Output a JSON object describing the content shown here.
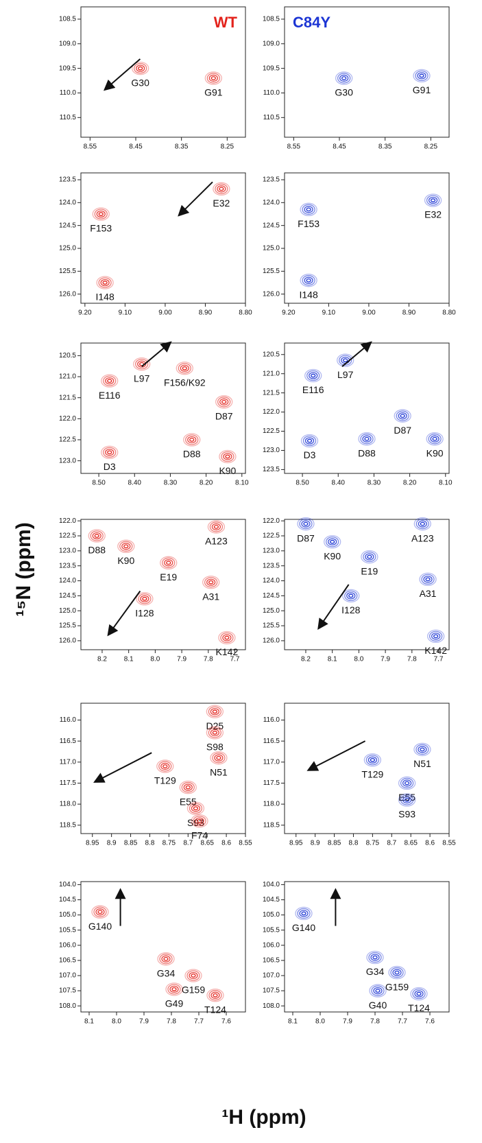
{
  "axis_labels": {
    "x": "¹H (ppm)",
    "y": "¹⁵N (ppm)"
  },
  "chart_data": [
    {
      "type": "scatter",
      "title": "WT",
      "color": "#e3231c",
      "xlim": [
        8.57,
        8.21
      ],
      "ylim": [
        110.9,
        108.25
      ],
      "xticks": [
        8.55,
        8.45,
        8.35,
        8.25
      ],
      "yticks": [
        108.5,
        {
          "value": 109,
          "label": "109.0"
        },
        109.5,
        {
          "value": 110,
          "label": "110.0"
        },
        110.5
      ],
      "x": [
        8.44,
        8.28
      ],
      "values": [
        109.5,
        109.7
      ],
      "labels": [
        "G30",
        "G91"
      ]
    },
    {
      "type": "scatter",
      "title": "C84Y",
      "color": "#1c35d4",
      "xlim": [
        8.57,
        8.21
      ],
      "ylim": [
        110.9,
        108.25
      ],
      "xticks": [
        8.55,
        8.45,
        8.35,
        8.25
      ],
      "yticks": [
        108.5,
        {
          "value": 109,
          "label": "109.0"
        },
        109.5,
        {
          "value": 110,
          "label": "110.0"
        },
        110.5
      ],
      "x": [
        8.44,
        8.27
      ],
      "values": [
        109.7,
        109.65
      ],
      "labels": [
        "G30",
        "G91"
      ]
    },
    {
      "type": "scatter",
      "color": "#e3231c",
      "xlim": [
        9.21,
        8.8
      ],
      "ylim": [
        126.2,
        123.35
      ],
      "xticks": [
        {
          "value": 9.2,
          "label": "9.20"
        },
        {
          "value": 9.1,
          "label": "9.10"
        },
        {
          "value": 9,
          "label": "9.00"
        },
        {
          "value": 8.9,
          "label": "8.90"
        },
        {
          "value": 8.8,
          "label": "8.80"
        }
      ],
      "yticks": [
        123.5,
        {
          "value": 124,
          "label": "124.0"
        },
        124.5,
        {
          "value": 125,
          "label": "125.0"
        },
        125.5,
        {
          "value": 126,
          "label": "126.0"
        }
      ],
      "x": [
        9.16,
        9.15,
        8.86
      ],
      "values": [
        124.25,
        125.75,
        123.7
      ],
      "labels": [
        "F153",
        "I148",
        "E32"
      ]
    },
    {
      "type": "scatter",
      "color": "#1c35d4",
      "xlim": [
        9.21,
        8.8
      ],
      "ylim": [
        126.2,
        123.35
      ],
      "xticks": [
        {
          "value": 9.2,
          "label": "9.20"
        },
        {
          "value": 9.1,
          "label": "9.10"
        },
        {
          "value": 9,
          "label": "9.00"
        },
        {
          "value": 8.9,
          "label": "8.90"
        },
        {
          "value": 8.8,
          "label": "8.80"
        }
      ],
      "yticks": [
        123.5,
        {
          "value": 124,
          "label": "124.0"
        },
        124.5,
        {
          "value": 125,
          "label": "125.0"
        },
        125.5,
        {
          "value": 126,
          "label": "126.0"
        }
      ],
      "x": [
        9.15,
        9.15,
        8.84
      ],
      "values": [
        124.15,
        125.7,
        123.95
      ],
      "labels": [
        "F153",
        "I148",
        "E32"
      ]
    },
    {
      "type": "scatter",
      "color": "#e3231c",
      "xlim": [
        8.55,
        8.09
      ],
      "ylim": [
        123.3,
        120.2
      ],
      "xticks": [
        {
          "value": 8.5,
          "label": "8.50"
        },
        {
          "value": 8.4,
          "label": "8.40"
        },
        {
          "value": 8.3,
          "label": "8.30"
        },
        {
          "value": 8.2,
          "label": "8.20"
        },
        {
          "value": 8.1,
          "label": "8.10"
        }
      ],
      "yticks": [
        120.5,
        {
          "value": 121,
          "label": "121.0"
        },
        121.5,
        {
          "value": 122,
          "label": "122.0"
        },
        122.5,
        {
          "value": 123,
          "label": "123.0"
        }
      ],
      "x": [
        8.47,
        8.38,
        8.26,
        8.15,
        8.47,
        8.24,
        8.14
      ],
      "values": [
        121.1,
        120.7,
        120.8,
        121.6,
        122.8,
        122.5,
        122.9
      ],
      "labels": [
        "E116",
        "L97",
        "F156/K92",
        "D87",
        "D3",
        "D88",
        "K90"
      ]
    },
    {
      "type": "scatter",
      "color": "#1c35d4",
      "xlim": [
        8.55,
        8.09
      ],
      "ylim": [
        123.6,
        120.2
      ],
      "xticks": [
        {
          "value": 8.5,
          "label": "8.50"
        },
        {
          "value": 8.4,
          "label": "8.40"
        },
        {
          "value": 8.3,
          "label": "8.30"
        },
        {
          "value": 8.2,
          "label": "8.20"
        },
        {
          "value": 8.1,
          "label": "8.10"
        }
      ],
      "yticks": [
        120.5,
        {
          "value": 121,
          "label": "121.0"
        },
        121.5,
        {
          "value": 122,
          "label": "122.0"
        },
        122.5,
        {
          "value": 123,
          "label": "123.0"
        },
        123.5
      ],
      "x": [
        8.47,
        8.38,
        8.22,
        8.48,
        8.32,
        8.13
      ],
      "values": [
        121.05,
        120.65,
        122.1,
        122.75,
        122.7,
        122.7
      ],
      "labels": [
        "E116",
        "L97",
        "D87",
        "D3",
        "D88",
        "K90"
      ]
    },
    {
      "type": "scatter",
      "color": "#e3231c",
      "xlim": [
        8.28,
        7.66
      ],
      "ylim": [
        126.3,
        121.95
      ],
      "xticks": [
        8.2,
        8.1,
        {
          "value": 8,
          "label": "8.0"
        },
        7.9,
        7.8,
        7.7
      ],
      "yticks": [
        {
          "value": 122,
          "label": "122.0"
        },
        122.5,
        {
          "value": 123,
          "label": "123.0"
        },
        123.5,
        {
          "value": 124,
          "label": "124.0"
        },
        124.5,
        {
          "value": 125,
          "label": "125.0"
        },
        125.5,
        {
          "value": 126,
          "label": "126.0"
        }
      ],
      "x": [
        8.22,
        8.11,
        7.95,
        7.77,
        7.79,
        8.04,
        7.73
      ],
      "values": [
        122.5,
        122.85,
        123.4,
        122.2,
        124.05,
        124.6,
        125.9
      ],
      "labels": [
        "D88",
        "K90",
        "E19",
        "A123",
        "A31",
        "I128",
        "K142"
      ]
    },
    {
      "type": "scatter",
      "color": "#1c35d4",
      "xlim": [
        8.28,
        7.66
      ],
      "ylim": [
        126.3,
        121.95
      ],
      "xticks": [
        8.2,
        8.1,
        {
          "value": 8,
          "label": "8.0"
        },
        7.9,
        7.8,
        7.7
      ],
      "yticks": [
        {
          "value": 122,
          "label": "122.0"
        },
        122.5,
        {
          "value": 123,
          "label": "123.0"
        },
        123.5,
        {
          "value": 124,
          "label": "124.0"
        },
        124.5,
        {
          "value": 125,
          "label": "125.0"
        },
        125.5,
        {
          "value": 126,
          "label": "126.0"
        }
      ],
      "x": [
        8.2,
        8.1,
        7.96,
        7.76,
        7.74,
        8.03,
        7.71
      ],
      "values": [
        122.1,
        122.7,
        123.2,
        122.1,
        123.95,
        124.5,
        125.85
      ],
      "labels": [
        "D87",
        "K90",
        "E19",
        "A123",
        "A31",
        "I128",
        "K142"
      ]
    },
    {
      "type": "scatter",
      "color": "#e3231c",
      "xlim": [
        8.98,
        8.55
      ],
      "ylim": [
        118.7,
        115.6
      ],
      "xticks": [
        8.95,
        8.9,
        8.85,
        8.8,
        8.75,
        8.7,
        8.65,
        8.6,
        8.55
      ],
      "yticks": [
        {
          "value": 116,
          "label": "116.0"
        },
        116.5,
        {
          "value": 117,
          "label": "117.0"
        },
        117.5,
        {
          "value": 118,
          "label": "118.0"
        },
        118.5
      ],
      "x": [
        8.63,
        8.63,
        8.62,
        8.76,
        8.7,
        8.68,
        8.67
      ],
      "values": [
        115.8,
        116.3,
        116.9,
        117.1,
        117.6,
        118.1,
        118.4
      ],
      "labels": [
        "D25",
        "S98",
        "N51",
        "T129",
        "E55",
        "S93",
        "F74"
      ]
    },
    {
      "type": "scatter",
      "color": "#1c35d4",
      "xlim": [
        8.98,
        8.55
      ],
      "ylim": [
        118.7,
        115.6
      ],
      "xticks": [
        8.95,
        8.9,
        8.85,
        8.8,
        8.75,
        8.7,
        8.65,
        8.6,
        8.55
      ],
      "yticks": [
        {
          "value": 116,
          "label": "116.0"
        },
        116.5,
        {
          "value": 117,
          "label": "117.0"
        },
        117.5,
        {
          "value": 118,
          "label": "118.0"
        },
        118.5
      ],
      "x": [
        8.62,
        8.75,
        8.66,
        8.66
      ],
      "values": [
        116.7,
        116.95,
        117.5,
        117.9
      ],
      "labels": [
        "N51",
        "T129",
        "E55",
        "S93"
      ]
    },
    {
      "type": "scatter",
      "color": "#e3231c",
      "xlim": [
        8.13,
        7.53
      ],
      "ylim": [
        108.2,
        103.9
      ],
      "xticks": [
        8.1,
        {
          "value": 8,
          "label": "8.0"
        },
        7.9,
        7.8,
        7.7,
        7.6
      ],
      "yticks": [
        {
          "value": 104,
          "label": "104.0"
        },
        104.5,
        {
          "value": 105,
          "label": "105.0"
        },
        105.5,
        {
          "value": 106,
          "label": "106.0"
        },
        106.5,
        {
          "value": 107,
          "label": "107.0"
        },
        107.5,
        {
          "value": 108,
          "label": "108.0"
        }
      ],
      "x": [
        8.06,
        7.82,
        7.72,
        7.79,
        7.64
      ],
      "values": [
        104.9,
        106.45,
        107,
        107.45,
        107.65
      ],
      "labels": [
        "G140",
        "G34",
        "G159",
        "G49",
        "T124"
      ]
    },
    {
      "type": "scatter",
      "color": "#1c35d4",
      "xlim": [
        8.13,
        7.53
      ],
      "ylim": [
        108.2,
        103.9
      ],
      "xticks": [
        8.1,
        {
          "value": 8,
          "label": "8.0"
        },
        7.9,
        7.8,
        7.7,
        7.6
      ],
      "yticks": [
        {
          "value": 104,
          "label": "104.0"
        },
        104.5,
        {
          "value": 105,
          "label": "105.0"
        },
        105.5,
        {
          "value": 106,
          "label": "106.0"
        },
        106.5,
        {
          "value": 107,
          "label": "107.0"
        },
        107.5,
        {
          "value": 108,
          "label": "108.0"
        }
      ],
      "x": [
        8.06,
        7.8,
        7.72,
        7.79,
        7.64
      ],
      "values": [
        104.95,
        106.4,
        106.9,
        107.5,
        107.6
      ],
      "labels": [
        "G140",
        "G34",
        "G159",
        "G40",
        "T124"
      ]
    }
  ]
}
